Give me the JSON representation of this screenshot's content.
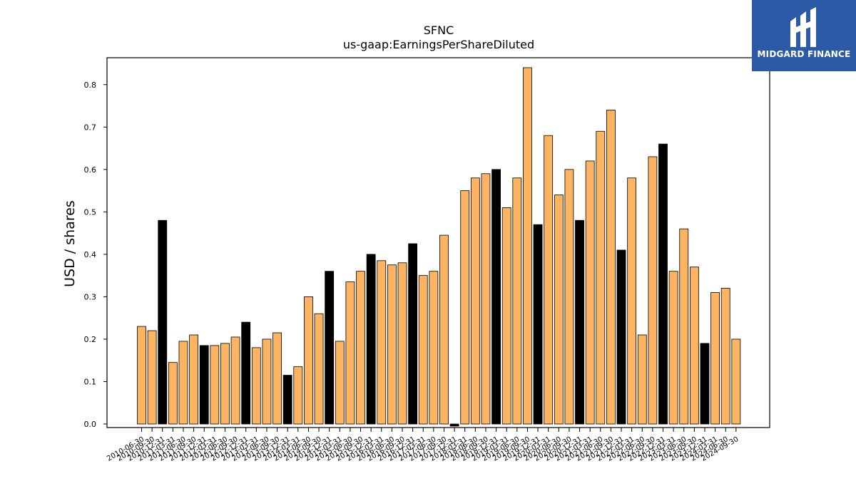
{
  "logo": {
    "name": "MIDGARD FINANCE"
  },
  "colors": {
    "normal_bar": "#fdb462",
    "highlight_bar": "#000000",
    "logo_bg": "#2c5aa6"
  },
  "chart_data": {
    "type": "bar",
    "title": "SFNC",
    "subtitle": "us-gaap:EarningsPerShareDiluted",
    "ylabel": "USD / shares",
    "xlabel": "",
    "ylim": [
      0,
      0.85
    ],
    "yticks": [
      "0.0",
      "0.1",
      "0.2",
      "0.3",
      "0.4",
      "0.5",
      "0.6",
      "0.7",
      "0.8"
    ],
    "grid": false,
    "categories": [
      "2010-06-30",
      "2010-09-30",
      "2010-12-31",
      "2011-03-31",
      "2011-06-30",
      "2011-09-30",
      "2011-12-31",
      "2012-03-31",
      "2012-06-30",
      "2012-09-30",
      "2012-12-31",
      "2013-03-31",
      "2013-06-30",
      "2013-09-30",
      "2013-12-31",
      "2014-03-31",
      "2014-06-30",
      "2014-09-30",
      "2014-12-31",
      "2015-03-31",
      "2015-06-30",
      "2015-09-30",
      "2015-12-31",
      "2016-03-31",
      "2016-06-30",
      "2016-09-30",
      "2016-12-31",
      "2017-03-31",
      "2017-06-30",
      "2017-09-30",
      "2017-12-31",
      "2018-03-31",
      "2018-06-30",
      "2018-09-30",
      "2018-12-31",
      "2019-03-31",
      "2019-06-30",
      "2019-09-30",
      "2019-12-31",
      "2020-03-31",
      "2020-06-30",
      "2020-09-30",
      "2020-12-31",
      "2021-03-31",
      "2021-06-30",
      "2021-09-30",
      "2021-12-31",
      "2022-03-31",
      "2022-06-30",
      "2022-09-30",
      "2022-12-31",
      "2023-03-31",
      "2023-06-30",
      "2023-09-30",
      "2023-12-31",
      "2024-03-31",
      "2024-06-30",
      "2024-09-30"
    ],
    "values": [
      0.23,
      0.22,
      0.48,
      0.145,
      0.195,
      0.21,
      0.185,
      0.185,
      0.19,
      0.205,
      0.24,
      0.18,
      0.2,
      0.215,
      0.115,
      0.135,
      0.3,
      0.26,
      0.36,
      0.195,
      0.335,
      0.36,
      0.4,
      0.385,
      0.375,
      0.38,
      0.425,
      0.35,
      0.36,
      0.445,
      -0.005,
      0.55,
      0.58,
      0.59,
      0.6,
      0.51,
      0.58,
      0.84,
      0.47,
      0.68,
      0.54,
      0.6,
      0.48,
      0.62,
      0.69,
      0.74,
      0.41,
      0.58,
      0.21,
      0.63,
      0.66,
      0.36,
      0.46,
      0.37,
      0.19,
      0.31,
      0.32,
      0.2
    ],
    "highlight": [
      false,
      false,
      true,
      false,
      false,
      false,
      true,
      false,
      false,
      false,
      true,
      false,
      false,
      false,
      true,
      false,
      false,
      false,
      true,
      false,
      false,
      false,
      true,
      false,
      false,
      false,
      true,
      false,
      false,
      false,
      true,
      false,
      false,
      false,
      true,
      false,
      false,
      false,
      true,
      false,
      false,
      false,
      true,
      false,
      false,
      false,
      true,
      false,
      false,
      false,
      true,
      false,
      false,
      false,
      true,
      false,
      false,
      false
    ]
  }
}
